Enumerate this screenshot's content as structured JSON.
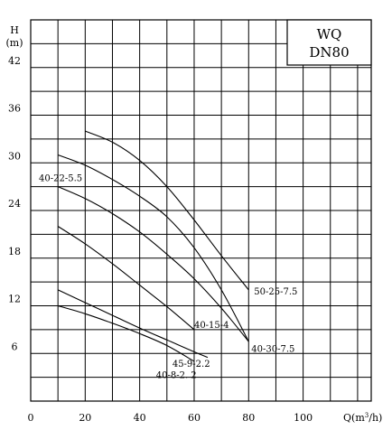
{
  "chart_data": {
    "type": "line",
    "title_lines": [
      "WQ",
      "DN80"
    ],
    "xlabel": "Q",
    "xlabel_sup": "3",
    "xlabel_unit_before": "(m",
    "xlabel_unit_after": "/h)",
    "ylabel_lines": [
      "H",
      "(m)"
    ],
    "xlim": [
      0,
      125
    ],
    "ylim": [
      0,
      48
    ],
    "x_ticks": [
      0,
      20,
      40,
      60,
      80,
      100
    ],
    "y_ticks": [
      6,
      12,
      18,
      24,
      30,
      36,
      42
    ],
    "grid": true,
    "series": [
      {
        "name": "50-25-7.5",
        "x": [
          20,
          30,
          40,
          50,
          60,
          70,
          80
        ],
        "y": [
          34,
          32.6,
          30.3,
          27,
          22.8,
          18.3,
          14
        ]
      },
      {
        "name": "40-30-7.5",
        "x": [
          10,
          20,
          30,
          40,
          50,
          60,
          70,
          80
        ],
        "y": [
          31,
          29.7,
          27.9,
          25.8,
          23.2,
          19.3,
          14,
          7.5
        ]
      },
      {
        "name": "40-22-5.5",
        "x": [
          10,
          20,
          30,
          40,
          50,
          60,
          70,
          80
        ],
        "y": [
          27,
          25.5,
          23.6,
          21.3,
          18.5,
          15.4,
          11.7,
          7.5
        ]
      },
      {
        "name": "40-15-4",
        "x": [
          10,
          20,
          30,
          40,
          50,
          60
        ],
        "y": [
          22,
          19.8,
          17.3,
          14.6,
          11.9,
          9
        ]
      },
      {
        "name": "45-9-2.2",
        "x": [
          10,
          20,
          30,
          40,
          50,
          60,
          65
        ],
        "y": [
          14,
          12.4,
          10.8,
          9.2,
          7.7,
          6.2,
          5.5
        ]
      },
      {
        "name": "40-8-2.2",
        "x": [
          10,
          20,
          30,
          40,
          50,
          60
        ],
        "y": [
          12,
          11,
          9.8,
          8.5,
          7,
          5
        ]
      }
    ],
    "labels": [
      {
        "text": "50-25-7.5",
        "x": 82,
        "y": 13.4
      },
      {
        "text": "40-30-7.5",
        "x": 81,
        "y": 6.2
      },
      {
        "text": "40-22-5.5",
        "x": 3,
        "y": 27.7
      },
      {
        "text": "40-15-4",
        "x": 60,
        "y": 9.2
      },
      {
        "text": "45-9-2.2",
        "x": 52,
        "y": 4.3
      },
      {
        "text": "40-8-2. 2",
        "x": 46,
        "y": 2.9
      }
    ]
  }
}
